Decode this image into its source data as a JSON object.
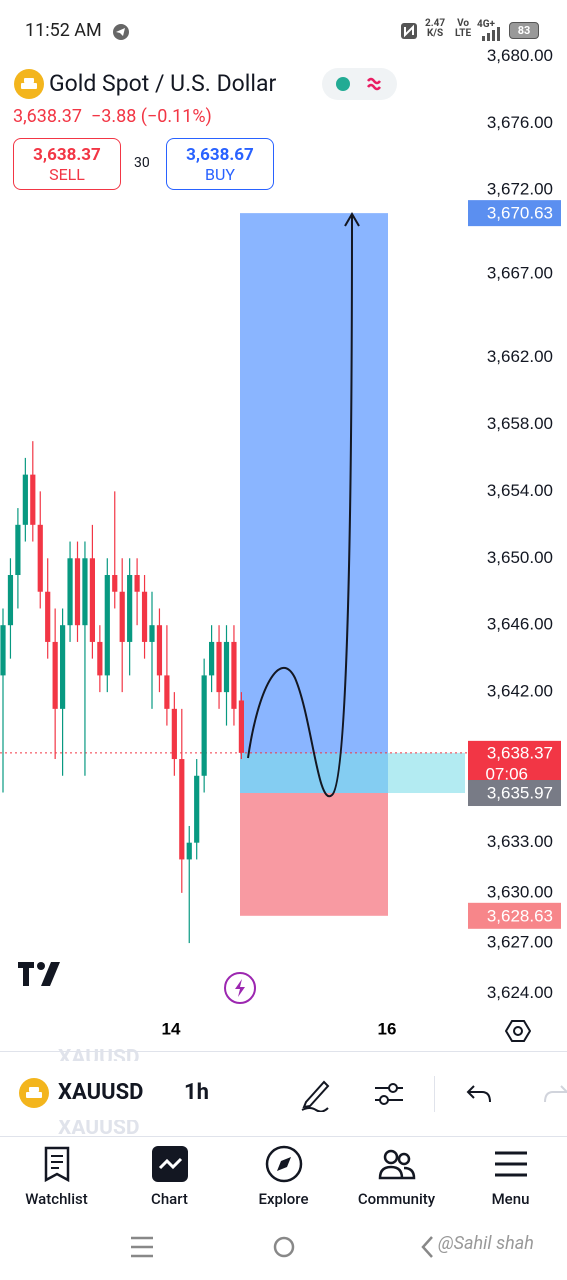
{
  "status": {
    "time": "11:52 AM",
    "speed": "2.47",
    "speed_unit": "K/S",
    "volte": "Vo",
    "lte": "LTE",
    "network": "4G+",
    "battery": "83"
  },
  "header": {
    "title": "Gold Spot / U.S. Dollar",
    "price": "3,638.37",
    "change": "−3.88",
    "change_pct": "(−0.11%)",
    "sell": {
      "price": "3,638.37",
      "label": "SELL"
    },
    "spread": "30",
    "buy": {
      "price": "3,638.67",
      "label": "BUY"
    }
  },
  "chart_data": {
    "type": "candlestick",
    "up_color": "#089981",
    "down_color": "#f23645",
    "open": [
      3643,
      3646,
      3649,
      3652,
      3655,
      3652,
      3648,
      3645,
      3641,
      3646,
      3650,
      3646,
      3650,
      3645,
      3643,
      3649,
      3648,
      3645,
      3649,
      3648,
      3645,
      3646,
      3643,
      3641,
      3638,
      3632,
      3633,
      3637,
      3643,
      3645,
      3642,
      3645,
      3641.5
    ],
    "high": [
      3647,
      3650,
      3653,
      3656,
      3657,
      3654,
      3650,
      3647,
      3647,
      3651,
      3651,
      3651,
      3652,
      3646,
      3650,
      3654,
      3650,
      3650,
      3650,
      3649,
      3648,
      3647,
      3646,
      3642,
      3641,
      3634,
      3638,
      3644,
      3646,
      3646,
      3646,
      3646,
      3642
    ],
    "low": [
      3636,
      3644,
      3647,
      3651,
      3651,
      3647,
      3644,
      3638,
      3637,
      3645,
      3645,
      3637,
      3644,
      3642,
      3642,
      3647,
      3642,
      3643,
      3646,
      3644,
      3641,
      3642,
      3640,
      3637,
      3630,
      3627,
      3632,
      3636,
      3642,
      3641,
      3640,
      3640,
      3638
    ],
    "close": [
      3646,
      3649,
      3652,
      3655,
      3652,
      3648,
      3645,
      3641,
      3646,
      3650,
      3646,
      3650,
      3645,
      3643,
      3649,
      3648,
      3645,
      3649,
      3648,
      3645,
      3646,
      3643,
      3641,
      3638,
      3632,
      3633,
      3637,
      3643,
      3645,
      3642,
      3645,
      3641,
      3638.37
    ],
    "x_labels": [
      "14",
      "16"
    ],
    "ylim": [
      3623,
      3680.5
    ],
    "yticks": [
      {
        "value": 3680,
        "label": "3,680.00"
      },
      {
        "value": 3676,
        "label": "3,676.00"
      },
      {
        "value": 3672,
        "label": "3,672.00"
      },
      {
        "value": 3667,
        "label": "3,667.00"
      },
      {
        "value": 3662,
        "label": "3,662.00"
      },
      {
        "value": 3658,
        "label": "3,658.00"
      },
      {
        "value": 3654,
        "label": "3,654.00"
      },
      {
        "value": 3650,
        "label": "3,650.00"
      },
      {
        "value": 3646,
        "label": "3,646.00"
      },
      {
        "value": 3642,
        "label": "3,642.00"
      },
      {
        "value": 3638,
        "label": "3,638.00"
      },
      {
        "value": 3633,
        "label": "3,633.00"
      },
      {
        "value": 3630,
        "label": "3,630.00"
      },
      {
        "value": 3627,
        "label": "3,627.00"
      },
      {
        "value": 3624,
        "label": "3,624.00"
      }
    ],
    "price_labels": [
      {
        "value": 3670.63,
        "label": "3,670.63",
        "color": "#5b8ff0"
      },
      {
        "value": 3638.37,
        "label": "3,638.37",
        "color": "#f23645",
        "countdown": "07:06"
      },
      {
        "value": 3635.97,
        "label": "3,635.97",
        "color": "#787b86"
      },
      {
        "value": 3628.63,
        "label": "3,628.63",
        "color": "#f7868a"
      }
    ]
  },
  "toolbar": {
    "picker_prev": "XAUUSD",
    "symbol": "XAUUSD",
    "interval": "1h",
    "picker_next": "XAUUSD"
  },
  "nav": [
    {
      "label": "Watchlist"
    },
    {
      "label": "Chart"
    },
    {
      "label": "Explore"
    },
    {
      "label": "Community"
    },
    {
      "label": "Menu"
    }
  ],
  "watermark": "@Sahil shah"
}
